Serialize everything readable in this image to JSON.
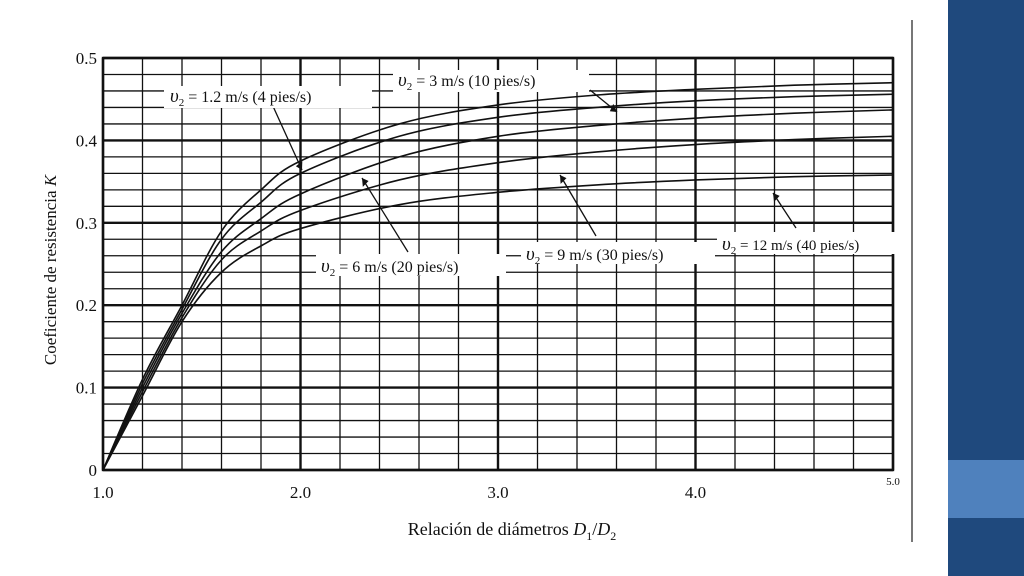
{
  "theme": {
    "sidebar_dark": "#1f497d",
    "sidebar_light": "#4f81bd",
    "ink": "#111111"
  },
  "chart_data": {
    "type": "line",
    "xlabel": "Relación de diámetros D1/D2",
    "ylabel": "Coeficiente de resistencia K",
    "xlim": [
      1.0,
      5.0
    ],
    "ylim": [
      0,
      0.5
    ],
    "x_ticks": [
      "1.0",
      "2.0",
      "3.0",
      "4.0",
      "5.0"
    ],
    "y_ticks": [
      "0",
      "0.1",
      "0.2",
      "0.3",
      "0.4",
      "0.5"
    ],
    "grid": true,
    "x": [
      1.0,
      1.2,
      1.4,
      1.6,
      1.8,
      2.0,
      2.5,
      3.0,
      3.5,
      4.0,
      4.5,
      5.0
    ],
    "series": [
      {
        "name": "v2 = 1.2 m/s (4 pies/s)",
        "values": [
          0.0,
          0.11,
          0.2,
          0.29,
          0.34,
          0.375,
          0.42,
          0.443,
          0.455,
          0.462,
          0.467,
          0.47
        ]
      },
      {
        "name": "v2 = 3 m/s (10 pies/s)",
        "values": [
          0.0,
          0.105,
          0.195,
          0.28,
          0.325,
          0.36,
          0.405,
          0.428,
          0.44,
          0.448,
          0.453,
          0.456
        ]
      },
      {
        "name": "v2 = 6 m/s (20 pies/s)",
        "values": [
          0.0,
          0.1,
          0.19,
          0.265,
          0.305,
          0.335,
          0.38,
          0.405,
          0.418,
          0.427,
          0.433,
          0.437
        ]
      },
      {
        "name": "v2 = 9 m/s (30 pies/s)",
        "values": [
          0.0,
          0.095,
          0.185,
          0.255,
          0.29,
          0.315,
          0.352,
          0.373,
          0.386,
          0.395,
          0.401,
          0.405
        ]
      },
      {
        "name": "v2 = 12 m/s (40 pies/s)",
        "values": [
          0.0,
          0.09,
          0.18,
          0.24,
          0.272,
          0.293,
          0.322,
          0.337,
          0.346,
          0.352,
          0.356,
          0.358
        ]
      }
    ],
    "annotations": [
      {
        "label": "v2 = 1.2 m/s (4 pies/s)",
        "prefix": "υ",
        "sub": "2",
        "rest": " = 1.2 m/s (4 pies/s)"
      },
      {
        "label": "v2 = 3 m/s (10 pies/s)",
        "prefix": "υ",
        "sub": "2",
        "rest": " = 3 m/s (10 pies/s)"
      },
      {
        "label": "v2 = 6 m/s (20 pies/s)",
        "prefix": "υ",
        "sub": "2",
        "rest": " = 6 m/s (20 pies/s)"
      },
      {
        "label": "v2 = 9 m/s (30 pies/s)",
        "prefix": "υ",
        "sub": "2",
        "rest": " = 9 m/s (30 pies/s)"
      },
      {
        "label": "v2 = 12 m/s (40 pies/s)",
        "prefix": "υ",
        "sub": "2",
        "rest": " = 12 m/s (40 pies/s)"
      }
    ],
    "xlabel_parts": {
      "text": "Relación de diámetros ",
      "d1": "D",
      "d1sub": "1",
      "slash": "/",
      "d2": "D",
      "d2sub": "2"
    },
    "ylabel_parts": {
      "text": "Coeficiente de resistencia ",
      "k": "K"
    }
  }
}
